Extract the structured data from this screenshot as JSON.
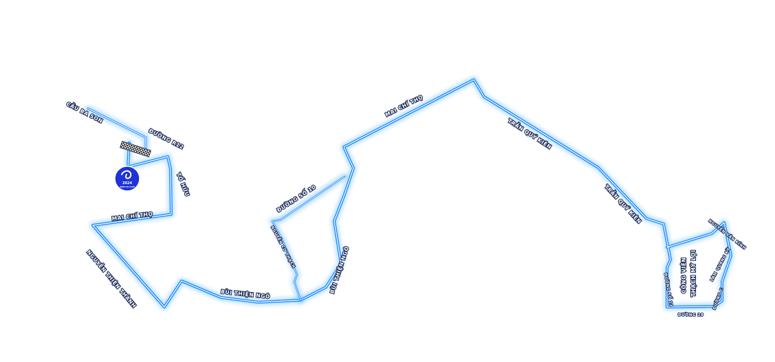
{
  "colors": {
    "route": "#1a8cff",
    "route_glow": "#4aa8ff",
    "route_core": "#ffffff",
    "label_outline": "#1a2a55",
    "badge": "#1f33d6"
  },
  "icons": {
    "start_finish": "checkered-flag-icon",
    "event_logo": "event-logo-badge"
  },
  "badge": {
    "year": "2024",
    "subtitle": "RUN TO LIVE"
  },
  "street_labels": {
    "cau_ba_son": "CẦU BA SON",
    "duong_r12": "ĐƯỜNG R12",
    "to_huu": "TỐ HỮU",
    "mai_chi_tho_left": "MAI CHÍ THỌ",
    "nguyen_thien_thanh": "NGUYỄN THIỆN THÀNH",
    "bui_thien_ngo_bottom": "BÙI THIỆN NGÔ",
    "duong_so_10": "ĐƯỜNG SỐ 10",
    "nguyen_co_thach": "NGUYỄN CƠ THẠCH",
    "bui_thien_ngo_right": "BÙI THIỆN NGÔ",
    "mai_chi_tho_top": "MAI CHÍ THỌ",
    "tran_quy_kien_1": "TRẦN QUÝ KIÊN",
    "tran_quy_kien_2": "TRẦN QUÝ KIÊN",
    "nguyen_van_kinh": "NGUYỄN VĂN KÍNH",
    "park_name_line1": "CÔNG VIÊN",
    "park_name_line2": "THẠCH MỸ LỢI",
    "duong_so_13": "ĐƯỜNG SỐ 13",
    "duong_28": "ĐƯỜNG 28",
    "lam_quang_ky": "LÂM QUANG KỲ",
    "duong_c": "ĐƯỜNG C"
  }
}
